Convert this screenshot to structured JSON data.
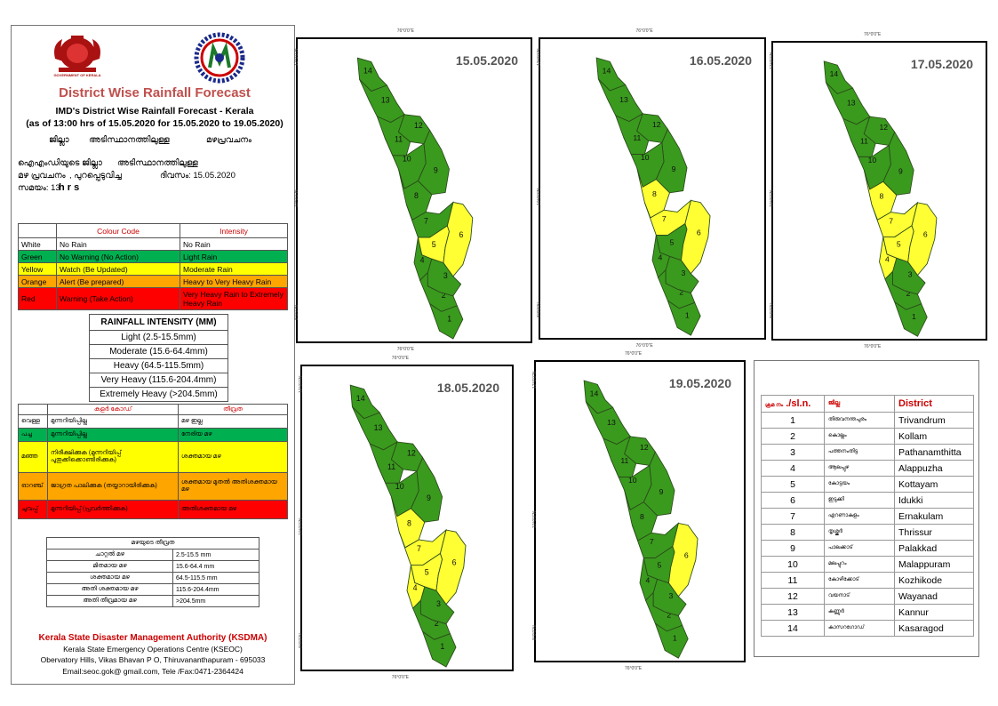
{
  "header": {
    "title": "District Wise Rainfall Forecast",
    "subtitle1": "IMD's District Wise Rainfall Forecast - Kerala",
    "subtitle2": "(as of 13:00 hrs of 15.05.2020  for 15.05.2020 to 19.05.2020)",
    "mal_line1_a": "ജില്ലാ",
    "mal_line1_b": "അടിസ്ഥാനത്തിലുള്ള",
    "mal_line1_c": "മഴപ്രവചനം",
    "mal_line2_a": "ഐഎംഡിയുടെ ജില്ലാ",
    "mal_line2_b": "അടിസ്ഥാനത്തിലുള്ള",
    "mal_line3_a": "മഴ പ്രവചനം",
    "mal_line3_b": ", പുറപ്പെടുവിച്ച",
    "mal_line3_c": "ദിവസം: 15.05.2020",
    "mal_line4": "സമയം: 13",
    "mal_line4_b": "h r s",
    "logo_caption": "GOVERNMENT OF KERALA"
  },
  "colour_code": {
    "header_code": "Colour Code",
    "header_intensity": "Intensity",
    "rows": [
      {
        "name": "White",
        "code": "No Rain",
        "intensity": "No Rain",
        "color": "#ffffff"
      },
      {
        "name": "Green",
        "code": "No Warning (No Action)",
        "intensity": "Light Rain",
        "color": "#00b050"
      },
      {
        "name": "Yellow",
        "code": "Watch (Be Updated)",
        "intensity": "Moderate Rain",
        "color": "#ffff00"
      },
      {
        "name": "Orange",
        "code": "Alert (Be prepared)",
        "intensity": "Heavy to Very Heavy Rain",
        "color": "#ffa500"
      },
      {
        "name": "Red",
        "code": "Warning (Take Action)",
        "intensity": "Very Heavy Rain to Extremely Heavy Rain",
        "color": "#ff0000"
      }
    ]
  },
  "rainfall_intensity": {
    "header": "RAINFALL INTENSITY (MM)",
    "rows": [
      "Light (2.5-15.5mm)",
      "Moderate (15.6-64.4mm)",
      "Heavy (64.5-115.5mm)",
      "Very Heavy (115.6-204.4mm)",
      "Extremely Heavy (>204.5mm)"
    ]
  },
  "mal_colour_code": {
    "header_code": "കളർ കോഡ്",
    "header_intensity": "തീവ്രത",
    "rows": [
      {
        "name": "വെള്ള",
        "code": "മുന്നറിയിപ്പില്ല",
        "intensity": "മഴ ഇല്ല",
        "color": "#ffffff"
      },
      {
        "name": "പച്ച",
        "code": "മുന്നറിയിപ്പില്ല",
        "intensity": "നേരിയ മഴ",
        "color": "#00b050"
      },
      {
        "name": "മഞ്ഞ",
        "code": "നിരീക്ഷിക്കുക (മുന്നറിയിപ്പ് പുതുക്കിക്കൊണ്ടിരിക്കുക)",
        "intensity": "ശക്തമായ മഴ",
        "color": "#ffff00"
      },
      {
        "name": "ഓറഞ്ച്",
        "code": "ജാഗ്രത പാലിക്കുക (തയ്യാറായിരിക്കുക)",
        "intensity": "ശക്തമായ മുതൽ അതിശക്തമായ മഴ",
        "color": "#ffa500"
      },
      {
        "name": "ചുവപ്പ്",
        "code": "മുന്നറിയിപ്പ് (പ്രവർത്തിക്കുക)",
        "intensity": "അതിശക്തമായ മഴ",
        "color": "#ff0000"
      }
    ]
  },
  "mal_intensity": {
    "header": "മഴയുടെ തീവ്രത",
    "rows": [
      {
        "label": "ചാറ്റൽ മഴ",
        "value": "2.5-15.5 mm"
      },
      {
        "label": "മിതമായ മഴ",
        "value": "15.6-64.4 mm"
      },
      {
        "label": "ശക്തമായ മഴ",
        "value": "64.5-115.5 mm"
      },
      {
        "label": "അതി ശക്തമായ മഴ",
        "value": "115.6-204.4mm"
      },
      {
        "label": "അതി തീവ്രമായ മഴ",
        "value": ">204.5mm"
      }
    ]
  },
  "footer": {
    "org": "Kerala State Disaster Management Authority (KSDMA)",
    "line2": "Kerala State Emergency Operations Centre (KSEOC)",
    "line3": "Obervatory Hills, Vikas Bhavan P O, Thiruvananthapuram - 695033",
    "line4": "Email:seoc.gok@ gmail.com, Tele /Fax:0471-2364424"
  },
  "map_ticks": {
    "lon": "76°0'0\"E",
    "lat_top": "12°0'0\"N",
    "lat_mid": "10°0'0\"N",
    "lat_bot": "8°0'0\"N"
  },
  "maps": [
    {
      "date": "15.05.2020",
      "yellow": [
        5,
        6
      ]
    },
    {
      "date": "16.05.2020",
      "yellow": [
        6,
        7,
        8
      ]
    },
    {
      "date": "17.05.2020",
      "yellow": [
        4,
        5,
        6,
        7,
        8
      ]
    },
    {
      "date": "18.05.2020",
      "yellow": [
        4,
        5,
        6,
        7,
        8
      ]
    },
    {
      "date": "19.05.2020",
      "yellow": [
        6
      ]
    }
  ],
  "colors": {
    "green": "#3a9a1e",
    "yellow": "#ffff33",
    "red_title": "#c0504d"
  },
  "districts": {
    "header_mal": "ക്രമ നം",
    "header_sl": "./sl.n.",
    "header_mal_district": "ജില്ല",
    "header_district": "District",
    "rows": [
      {
        "n": "1",
        "mal": "തിരുവനന്തപുരം",
        "name": "Trivandrum"
      },
      {
        "n": "2",
        "mal": "കൊല്ലം",
        "name": "Kollam"
      },
      {
        "n": "3",
        "mal": "പത്തനംതിട്ട",
        "name": "Pathanamthitta"
      },
      {
        "n": "4",
        "mal": "ആലപ്പുഴ",
        "name": "Alappuzha"
      },
      {
        "n": "5",
        "mal": "കോട്ടയം",
        "name": "Kottayam"
      },
      {
        "n": "6",
        "mal": "ഇടുക്കി",
        "name": "Idukki"
      },
      {
        "n": "7",
        "mal": "എറണാകുളം",
        "name": "Ernakulam"
      },
      {
        "n": "8",
        "mal": "തൃശ്ശൂർ",
        "name": "Thrissur"
      },
      {
        "n": "9",
        "mal": "പാലക്കാട്",
        "name": "Palakkad"
      },
      {
        "n": "10",
        "mal": "മലപ്പുറം",
        "name": "Malappuram"
      },
      {
        "n": "11",
        "mal": "കോഴിക്കോട്",
        "name": "Kozhikode"
      },
      {
        "n": "12",
        "mal": "വയനാട്",
        "name": "Wayanad"
      },
      {
        "n": "13",
        "mal": "കണ്ണൂർ",
        "name": "Kannur"
      },
      {
        "n": "14",
        "mal": "കാസറഗോഡ്",
        "name": "Kasaragod"
      }
    ]
  }
}
